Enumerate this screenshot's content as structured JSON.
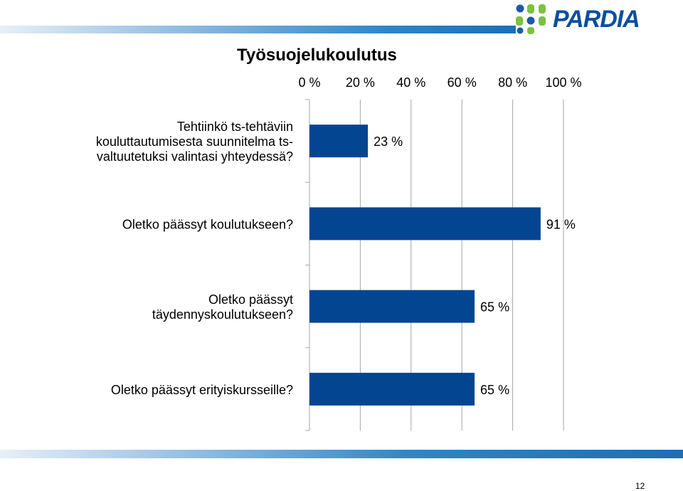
{
  "logo": {
    "text": "PARDIA"
  },
  "page_number": "12",
  "colors": {
    "bar": "#044592",
    "grid": "#a6a6a6",
    "band": "#1a6fb8"
  },
  "chart_data": {
    "type": "bar",
    "orientation": "horizontal",
    "title": "Työsuojelukoulutus",
    "categories": [
      "Tehtiinkö ts-tehtäviin kouluttautumisesta suunnitelma ts-valtuutetuksi valintasi yhteydessä?",
      "Oletko päässyt koulutukseen?",
      "Oletko päässyt täydennyskoulutukseen?",
      "Oletko päässyt erityiskursseille?"
    ],
    "category_lines": [
      [
        "Tehtiinkö ts-tehtäviin",
        "kouluttautumisesta suunnitelma ts-",
        "valtuutetuksi valintasi yhteydessä?"
      ],
      [
        "Oletko päässyt koulutukseen?"
      ],
      [
        "Oletko päässyt",
        "täydennyskoulutukseen?"
      ],
      [
        "Oletko päässyt erityiskursseille?"
      ]
    ],
    "values": [
      23,
      91,
      65,
      65
    ],
    "data_labels": [
      "23 %",
      "91 %",
      "65 %",
      "65 %"
    ],
    "x_ticks": [
      0,
      20,
      40,
      60,
      80,
      100
    ],
    "x_tick_labels": [
      "0 %",
      "20 %",
      "40 %",
      "60 %",
      "80 %",
      "100 %"
    ],
    "xlim": [
      0,
      100
    ],
    "x_axis_position": "top",
    "grid": true,
    "legend": "none"
  }
}
